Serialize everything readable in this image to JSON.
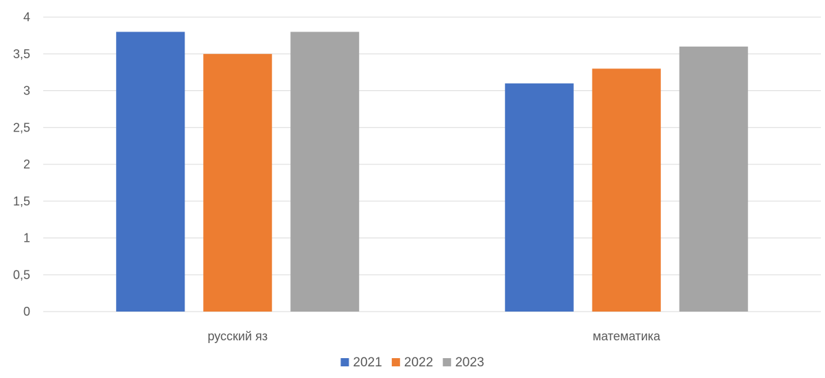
{
  "chart_data": {
    "type": "bar",
    "categories": [
      "русский яз",
      "математика"
    ],
    "series": [
      {
        "name": "2021",
        "values": [
          3.8,
          3.1
        ],
        "color": "#4472C4"
      },
      {
        "name": "2022",
        "values": [
          3.5,
          3.3
        ],
        "color": "#ED7D31"
      },
      {
        "name": "2023",
        "values": [
          3.8,
          3.6
        ],
        "color": "#A5A5A5"
      }
    ],
    "yticks": [
      "0",
      "0,5",
      "1",
      "1,5",
      "2",
      "2,5",
      "3",
      "3,5",
      "4"
    ],
    "ylim": [
      0,
      4
    ],
    "grid": true,
    "legend_position": "bottom"
  }
}
